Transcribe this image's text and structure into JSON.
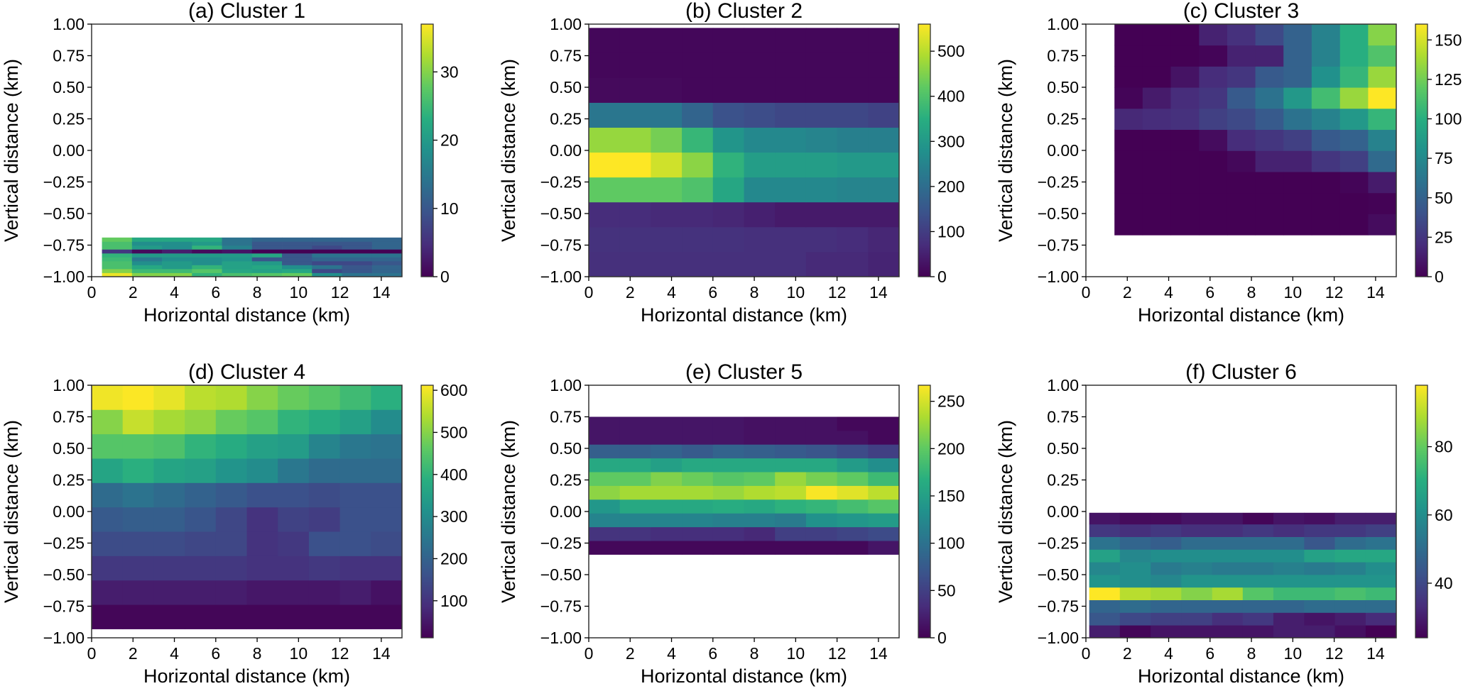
{
  "chart_data": [
    {
      "type": "heatmap",
      "title": "(a) Cluster 1",
      "xlabel": "Horizontal distance (km)",
      "ylabel": "Vertical distance (km)",
      "xlim": [
        0,
        15
      ],
      "ylim": [
        -1,
        1
      ],
      "xticks": [
        "0",
        "2",
        "4",
        "6",
        "8",
        "10",
        "12",
        "14"
      ],
      "yticks": [
        "1.00",
        "0.75",
        "0.50",
        "0.25",
        "0.00",
        "−0.25",
        "−0.50",
        "−0.75",
        "−1.00"
      ],
      "colorbar": {
        "min": 0,
        "max": 37,
        "ticks": [
          "0",
          "10",
          "20",
          "30"
        ]
      },
      "x_edges": [
        0.5,
        1.95,
        3.4,
        4.85,
        6.3,
        7.75,
        9.2,
        10.65,
        12.1,
        13.55,
        15
      ],
      "y_edges": [
        -1.0,
        -0.969,
        -0.938,
        -0.907,
        -0.876,
        -0.845,
        -0.814,
        -0.783,
        -0.752,
        -0.721,
        -0.69
      ],
      "values": [
        [
          36,
          30,
          30,
          24,
          26,
          27,
          28,
          18,
          14,
          14
        ],
        [
          30,
          25,
          25,
          27,
          22,
          21,
          22,
          8,
          10,
          12
        ],
        [
          26,
          22,
          20,
          24,
          21,
          22,
          18,
          14,
          10,
          12
        ],
        [
          26,
          18,
          20,
          18,
          21,
          20,
          10,
          8,
          8,
          10
        ],
        [
          25,
          15,
          18,
          18,
          19,
          10,
          10,
          12,
          12,
          12
        ],
        [
          24,
          20,
          20,
          20,
          20,
          22,
          10,
          14,
          14,
          14
        ],
        [
          6,
          1,
          3,
          1,
          2,
          0,
          0,
          0,
          0,
          0
        ],
        [
          26,
          20,
          18,
          24,
          16,
          10,
          10,
          8,
          10,
          12
        ],
        [
          26,
          18,
          18,
          20,
          14,
          10,
          10,
          10,
          10,
          12
        ],
        [
          28,
          22,
          22,
          22,
          14,
          12,
          12,
          12,
          12,
          12
        ]
      ]
    },
    {
      "type": "heatmap",
      "title": "(b) Cluster 2",
      "xlabel": "Horizontal distance (km)",
      "ylabel": "Vertical distance (km)",
      "xlim": [
        0,
        15
      ],
      "ylim": [
        -1,
        1
      ],
      "xticks": [
        "0",
        "2",
        "4",
        "6",
        "8",
        "10",
        "12",
        "14"
      ],
      "yticks": [
        "1.00",
        "0.75",
        "0.50",
        "0.25",
        "0.00",
        "−0.25",
        "−0.50",
        "−0.75",
        "−1.00"
      ],
      "colorbar": {
        "min": 0,
        "max": 560,
        "ticks": [
          "0",
          "100",
          "200",
          "300",
          "400",
          "500"
        ]
      },
      "x_edges": [
        0,
        1.5,
        3,
        4.5,
        6,
        7.5,
        9,
        10.5,
        12,
        13.5,
        15
      ],
      "y_edges": [
        -1.0,
        -0.803,
        -0.606,
        -0.409,
        -0.212,
        -0.015,
        0.182,
        0.379,
        0.576,
        0.773,
        0.97
      ],
      "values": [
        [
          75,
          75,
          75,
          75,
          75,
          75,
          75,
          65,
          65,
          55
        ],
        [
          80,
          80,
          80,
          80,
          80,
          75,
          75,
          75,
          70,
          60
        ],
        [
          70,
          70,
          65,
          65,
          60,
          50,
          40,
          40,
          40,
          40
        ],
        [
          420,
          420,
          420,
          400,
          330,
          260,
          260,
          260,
          250,
          250
        ],
        [
          560,
          560,
          520,
          460,
          360,
          310,
          310,
          310,
          300,
          300
        ],
        [
          470,
          470,
          440,
          370,
          290,
          260,
          260,
          250,
          240,
          240
        ],
        [
          220,
          220,
          220,
          180,
          140,
          130,
          120,
          120,
          120,
          110
        ],
        [
          15,
          15,
          15,
          10,
          10,
          10,
          10,
          10,
          10,
          10
        ],
        [
          10,
          10,
          10,
          10,
          10,
          10,
          10,
          10,
          10,
          10
        ],
        [
          10,
          10,
          10,
          10,
          10,
          10,
          10,
          10,
          10,
          10
        ]
      ]
    },
    {
      "type": "heatmap",
      "title": "(c) Cluster 3",
      "xlabel": "Horizontal distance (km)",
      "ylabel": "Vertical distance (km)",
      "xlim": [
        0,
        15
      ],
      "ylim": [
        -1,
        1
      ],
      "xticks": [
        "0",
        "2",
        "4",
        "6",
        "8",
        "10",
        "12",
        "14"
      ],
      "yticks": [
        "1.00",
        "0.75",
        "0.50",
        "0.25",
        "0.00",
        "−0.25",
        "−0.50",
        "−0.75",
        "−1.00"
      ],
      "colorbar": {
        "min": 0,
        "max": 160,
        "ticks": [
          "0",
          "25",
          "50",
          "75",
          "100",
          "125",
          "150"
        ]
      },
      "x_edges": [
        1.38,
        2.74,
        4.1,
        5.47,
        6.83,
        8.19,
        9.55,
        10.91,
        12.28,
        13.64,
        15
      ],
      "y_edges": [
        -0.67,
        -0.503,
        -0.336,
        -0.169,
        -0.002,
        0.165,
        0.332,
        0.499,
        0.666,
        0.833,
        1.0
      ],
      "values": [
        [
          0,
          0,
          0,
          0,
          0,
          0,
          0,
          0,
          0,
          5
        ],
        [
          0,
          0,
          0,
          0,
          0,
          0,
          0,
          0,
          0,
          1
        ],
        [
          0,
          0,
          0,
          0,
          0,
          0,
          0,
          0,
          2,
          12
        ],
        [
          0,
          0,
          0,
          0,
          3,
          15,
          15,
          25,
          30,
          55
        ],
        [
          0,
          0,
          0,
          5,
          20,
          25,
          30,
          45,
          50,
          70
        ],
        [
          18,
          20,
          22,
          30,
          35,
          45,
          60,
          70,
          85,
          105
        ],
        [
          2,
          12,
          20,
          25,
          45,
          60,
          85,
          110,
          135,
          160
        ],
        [
          0,
          0,
          8,
          20,
          25,
          45,
          50,
          80,
          105,
          135
        ],
        [
          0,
          0,
          0,
          2,
          15,
          15,
          50,
          70,
          100,
          115
        ],
        [
          0,
          0,
          0,
          15,
          22,
          35,
          50,
          70,
          100,
          130
        ]
      ]
    },
    {
      "type": "heatmap",
      "title": "(d) Cluster 4",
      "xlabel": "Horizontal distance (km)",
      "ylabel": "Vertical distance (km)",
      "xlim": [
        0,
        15
      ],
      "ylim": [
        -1,
        1
      ],
      "xticks": [
        "0",
        "2",
        "4",
        "6",
        "8",
        "10",
        "12",
        "14"
      ],
      "yticks": [
        "1.00",
        "0.75",
        "0.50",
        "0.25",
        "0.00",
        "−0.25",
        "−0.50",
        "−0.75",
        "−1.00"
      ],
      "colorbar": {
        "min": 12,
        "max": 612,
        "ticks": [
          "100",
          "200",
          "300",
          "400",
          "500",
          "600"
        ]
      },
      "x_edges": [
        0,
        1.5,
        3,
        4.5,
        6,
        7.5,
        9,
        10.5,
        12,
        13.5,
        15
      ],
      "y_edges": [
        -0.93,
        -0.737,
        -0.544,
        -0.351,
        -0.158,
        0.035,
        0.228,
        0.421,
        0.614,
        0.807,
        1.0
      ],
      "values": [
        [
          20,
          20,
          20,
          20,
          20,
          20,
          20,
          20,
          20,
          20
        ],
        [
          60,
          60,
          60,
          60,
          60,
          50,
          50,
          50,
          60,
          40
        ],
        [
          110,
          110,
          110,
          110,
          110,
          100,
          100,
          110,
          100,
          100
        ],
        [
          150,
          150,
          150,
          140,
          140,
          100,
          110,
          160,
          160,
          150
        ],
        [
          180,
          190,
          190,
          170,
          140,
          100,
          130,
          120,
          160,
          160
        ],
        [
          220,
          240,
          220,
          200,
          180,
          160,
          160,
          150,
          160,
          160
        ],
        [
          360,
          390,
          360,
          350,
          320,
          300,
          250,
          220,
          220,
          220
        ],
        [
          450,
          450,
          440,
          400,
          380,
          350,
          340,
          280,
          250,
          240
        ],
        [
          500,
          560,
          530,
          510,
          470,
          450,
          400,
          380,
          350,
          300
        ],
        [
          600,
          610,
          590,
          550,
          540,
          500,
          470,
          450,
          420,
          390
        ]
      ]
    },
    {
      "type": "heatmap",
      "title": "(e) Cluster 5",
      "xlabel": "Horizontal distance (km)",
      "ylabel": "Vertical distance (km)",
      "xlim": [
        0,
        15
      ],
      "ylim": [
        -1,
        1
      ],
      "xticks": [
        "0",
        "2",
        "4",
        "6",
        "8",
        "10",
        "12",
        "14"
      ],
      "yticks": [
        "1.00",
        "0.75",
        "0.50",
        "0.25",
        "0.00",
        "−0.25",
        "−0.50",
        "−0.75",
        "−1.00"
      ],
      "colorbar": {
        "min": 0,
        "max": 267,
        "ticks": [
          "0",
          "50",
          "100",
          "150",
          "200",
          "250"
        ]
      },
      "x_edges": [
        0,
        1.5,
        3,
        4.5,
        6,
        7.5,
        9,
        10.5,
        12,
        13.5,
        15
      ],
      "y_edges": [
        -0.34,
        -0.231,
        -0.122,
        -0.013,
        0.096,
        0.205,
        0.314,
        0.423,
        0.532,
        0.641,
        0.75
      ],
      "values": [
        [
          5,
          5,
          5,
          5,
          5,
          5,
          5,
          5,
          5,
          15
        ],
        [
          40,
          40,
          35,
          35,
          35,
          30,
          50,
          50,
          55,
          60
        ],
        [
          120,
          120,
          120,
          120,
          115,
          115,
          110,
          135,
          140,
          145
        ],
        [
          140,
          160,
          160,
          160,
          165,
          160,
          170,
          175,
          185,
          195
        ],
        [
          220,
          230,
          230,
          230,
          225,
          235,
          240,
          265,
          255,
          240
        ],
        [
          200,
          200,
          215,
          205,
          195,
          200,
          225,
          210,
          200,
          180
        ],
        [
          160,
          160,
          150,
          160,
          160,
          160,
          160,
          160,
          145,
          130
        ],
        [
          80,
          80,
          85,
          75,
          85,
          80,
          75,
          70,
          60,
          50
        ],
        [
          15,
          15,
          15,
          15,
          15,
          12,
          12,
          12,
          12,
          5
        ],
        [
          15,
          15,
          15,
          15,
          15,
          12,
          12,
          12,
          5,
          5
        ]
      ]
    },
    {
      "type": "heatmap",
      "title": "(f) Cluster 6",
      "xlabel": "Horizontal distance (km)",
      "ylabel": "Vertical distance (km)",
      "xlim": [
        0,
        15
      ],
      "ylim": [
        -1,
        1
      ],
      "xticks": [
        "0",
        "2",
        "4",
        "6",
        "8",
        "10",
        "12",
        "14"
      ],
      "yticks": [
        "1.00",
        "0.75",
        "0.50",
        "0.25",
        "0.00",
        "−0.25",
        "−0.50",
        "−0.75",
        "−1.00"
      ],
      "colorbar": {
        "min": 24,
        "max": 98,
        "ticks": [
          "40",
          "60",
          "80"
        ]
      },
      "x_edges": [
        0.16,
        1.64,
        3.13,
        4.61,
        6.1,
        7.58,
        9.06,
        10.55,
        12.03,
        13.52,
        15
      ],
      "y_edges": [
        -1.0,
        -0.9,
        -0.8,
        -0.7,
        -0.6,
        -0.5,
        -0.4,
        -0.3,
        -0.2,
        -0.1,
        -0.01
      ],
      "values": [
        [
          30,
          25,
          28,
          28,
          28,
          28,
          30,
          30,
          27,
          24
        ],
        [
          44,
          40,
          38,
          38,
          34,
          36,
          30,
          28,
          30,
          33
        ],
        [
          48,
          50,
          48,
          48,
          48,
          48,
          48,
          50,
          50,
          50
        ],
        [
          98,
          90,
          88,
          84,
          88,
          78,
          74,
          74,
          76,
          74
        ],
        [
          62,
          60,
          58,
          62,
          62,
          62,
          62,
          62,
          62,
          62
        ],
        [
          58,
          60,
          54,
          56,
          54,
          54,
          56,
          54,
          56,
          60
        ],
        [
          66,
          58,
          60,
          60,
          60,
          60,
          60,
          66,
          68,
          68
        ],
        [
          52,
          48,
          46,
          50,
          50,
          50,
          50,
          44,
          50,
          52
        ],
        [
          36,
          34,
          36,
          34,
          34,
          36,
          34,
          36,
          36,
          38
        ],
        [
          28,
          26,
          26,
          28,
          28,
          25,
          28,
          27,
          30,
          30
        ]
      ]
    }
  ],
  "colormap": [
    "#440154",
    "#472d7b",
    "#3b528b",
    "#2c728e",
    "#21918c",
    "#28ae80",
    "#5ec962",
    "#addc30",
    "#fde725"
  ]
}
